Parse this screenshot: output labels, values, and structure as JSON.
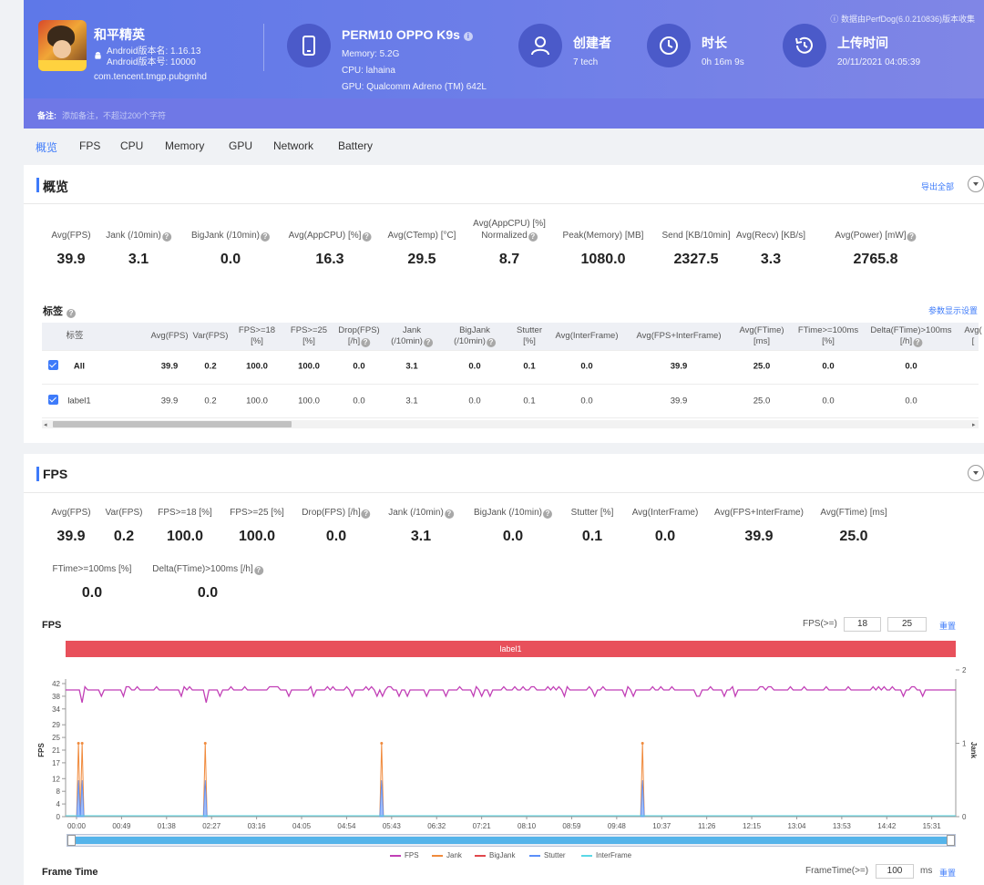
{
  "header": {
    "source_note": "数据由PerfDog(6.0.210836)版本收集",
    "app": {
      "name": "和平精英",
      "android_version_name": "Android版本名: 1.16.13",
      "android_version_code": "Android版本号: 10000",
      "package": "com.tencent.tmgp.pubgmhd"
    },
    "device": {
      "title": "PERM10 OPPO K9s",
      "memory": "Memory: 5.2G",
      "cpu": "CPU: lahaina",
      "gpu": "GPU: Qualcomm Adreno (TM) 642L"
    },
    "creator": {
      "title": "创建者",
      "value": "7 tech"
    },
    "duration": {
      "title": "时长",
      "value": "0h 16m 9s"
    },
    "upload": {
      "title": "上传时间",
      "value": "20/11/2021 04:05:39"
    },
    "remark": {
      "label": "备注:",
      "placeholder": "添加备注，不超过200个字符"
    }
  },
  "tabs": [
    "概览",
    "FPS",
    "CPU",
    "Memory",
    "GPU",
    "Network",
    "Battery"
  ],
  "overview": {
    "title": "概览",
    "export_label": "导出全部",
    "metrics": [
      {
        "label": "Avg(FPS)",
        "value": "39.9"
      },
      {
        "label": "Jank (/10min)",
        "value": "3.1"
      },
      {
        "label": "BigJank (/10min)",
        "value": "0.0"
      },
      {
        "label": "Avg(AppCPU) [%]",
        "value": "16.3"
      },
      {
        "label": "Avg(CTemp) [°C]",
        "value": "29.5"
      },
      {
        "label": "Avg(AppCPU) [%]",
        "label2": "Normalized",
        "value": "8.7"
      },
      {
        "label": "Peak(Memory) [MB]",
        "value": "1080.0"
      },
      {
        "label": "Send [KB/10min]",
        "value": "2327.5"
      },
      {
        "label": "Avg(Recv) [KB/s]",
        "value": "3.3"
      },
      {
        "label": "Avg(Power) [mW]",
        "value": "2765.8"
      }
    ],
    "labels_title": "标签",
    "param_settings": "参数显示设置",
    "table": {
      "columns": [
        [
          "标签"
        ],
        [
          "Avg(FPS)"
        ],
        [
          "Var(FPS)"
        ],
        [
          "FPS>=18",
          "[%]"
        ],
        [
          "FPS>=25",
          "[%]"
        ],
        [
          "Drop(FPS)",
          "[/h]"
        ],
        [
          "Jank",
          "(/10min)"
        ],
        [
          "BigJank",
          "(/10min)"
        ],
        [
          "Stutter",
          "[%]"
        ],
        [
          "Avg(InterFrame)"
        ],
        [
          "Avg(FPS+InterFrame)"
        ],
        [
          "Avg(FTime)",
          "[ms]"
        ],
        [
          "FTime>=100ms",
          "[%]"
        ],
        [
          "Delta(FTime)>100ms",
          "[/h]"
        ],
        [
          "Avg(",
          "["
        ]
      ],
      "rows": [
        {
          "name": "All",
          "cells": [
            "39.9",
            "0.2",
            "100.0",
            "100.0",
            "0.0",
            "3.1",
            "0.0",
            "0.1",
            "0.0",
            "39.9",
            "25.0",
            "0.0",
            "0.0"
          ]
        },
        {
          "name": "label1",
          "cells": [
            "39.9",
            "0.2",
            "100.0",
            "100.0",
            "0.0",
            "3.1",
            "0.0",
            "0.1",
            "0.0",
            "39.9",
            "25.0",
            "0.0",
            "0.0"
          ]
        }
      ]
    }
  },
  "fps_section": {
    "title": "FPS",
    "metrics_row1": [
      {
        "label": "Avg(FPS)",
        "value": "39.9"
      },
      {
        "label": "Var(FPS)",
        "value": "0.2"
      },
      {
        "label": "FPS>=18 [%]",
        "value": "100.0"
      },
      {
        "label": "FPS>=25 [%]",
        "value": "100.0"
      },
      {
        "label": "Drop(FPS) [/h]",
        "value": "0.0"
      },
      {
        "label": "Jank (/10min)",
        "value": "3.1"
      },
      {
        "label": "BigJank (/10min)",
        "value": "0.0"
      },
      {
        "label": "Stutter [%]",
        "value": "0.1"
      },
      {
        "label": "Avg(InterFrame)",
        "value": "0.0"
      },
      {
        "label": "Avg(FPS+InterFrame)",
        "value": "39.9"
      },
      {
        "label": "Avg(FTime) [ms]",
        "value": "25.0"
      }
    ],
    "metrics_row2": [
      {
        "label": "FTime>=100ms [%]",
        "value": "0.0"
      },
      {
        "label": "Delta(FTime)>100ms [/h]",
        "value": "0.0"
      }
    ],
    "chart_title": "FPS",
    "fps_threshold_label": "FPS(>=)",
    "fps_threshold_1": "18",
    "fps_threshold_2": "25",
    "reset_label": "重置",
    "label_bar": "label1",
    "frame_time_title": "Frame Time",
    "frame_time_threshold_label": "FrameTime(>=)",
    "frame_time_threshold": "100",
    "frame_time_unit": "ms"
  },
  "chart_data": {
    "type": "line",
    "title": "FPS",
    "ylabel": "FPS",
    "y2label": "Jank",
    "ylim": [
      0,
      42
    ],
    "y2lim": [
      0,
      2
    ],
    "yticks": [
      "0",
      "4",
      "8",
      "12",
      "17",
      "21",
      "25",
      "29",
      "34",
      "38",
      "42"
    ],
    "y2ticks": [
      "0",
      "1",
      "2"
    ],
    "xticks": [
      "00:00",
      "00:49",
      "01:38",
      "02:27",
      "03:16",
      "04:05",
      "04:54",
      "05:43",
      "06:32",
      "07:21",
      "08:10",
      "08:59",
      "09:48",
      "10:37",
      "11:26",
      "12:15",
      "13:04",
      "13:53",
      "14:42",
      "15:31"
    ],
    "series": [
      {
        "name": "FPS",
        "color": "#c13fb6",
        "mean": 40,
        "min": 36,
        "max": 41
      },
      {
        "name": "Jank",
        "color": "#f08a3c",
        "events_sec": [
          14,
          18,
          152,
          344,
          628
        ]
      },
      {
        "name": "BigJank",
        "color": "#e0474c",
        "events_sec": []
      },
      {
        "name": "Stutter",
        "color": "#5b8ff9",
        "events_sec": [
          14,
          18,
          152,
          344,
          628
        ]
      },
      {
        "name": "InterFrame",
        "color": "#5ad8e6",
        "events_sec": []
      }
    ],
    "legend_position": "bottom"
  }
}
